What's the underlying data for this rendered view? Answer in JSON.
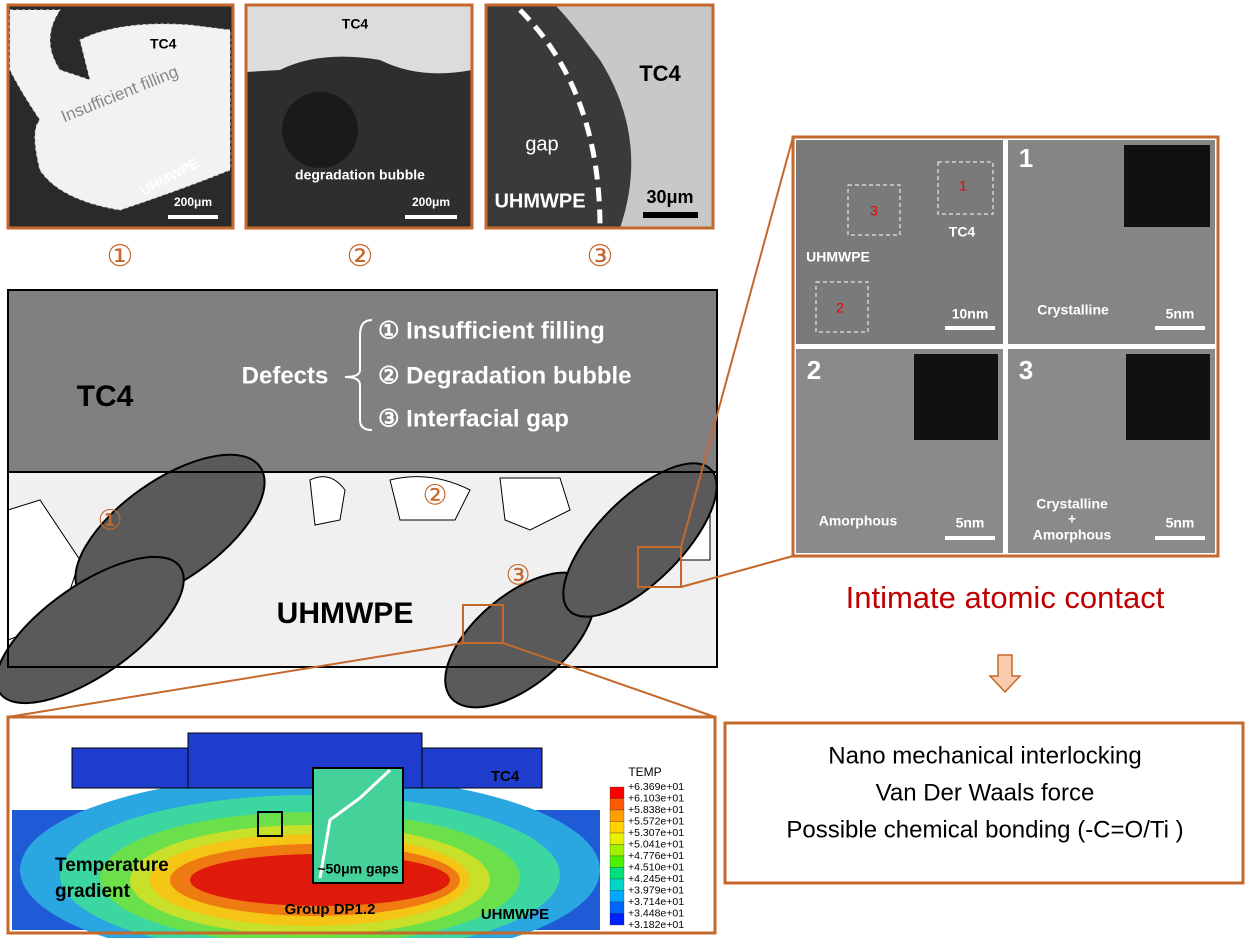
{
  "micrographs": [
    {
      "top": "TC4",
      "note": "Insufficient filling",
      "bottom": "UHMWPE",
      "scale": "200μm",
      "number": "①"
    },
    {
      "top": "TC4",
      "note": "degradation bubble",
      "scale": "200μm",
      "number": "②"
    },
    {
      "top": "TC4",
      "note": "gap",
      "bottom": "UHMWPE",
      "scale": "30μm",
      "number": "③"
    }
  ],
  "schematic": {
    "tc4": "TC4",
    "defects_label": "Defects",
    "defects": [
      "① Insufficient filling",
      "② Degradation bubble",
      "③ Interfacial gap"
    ],
    "uhmwpe": "UHMWPE",
    "markers": [
      "①",
      "②",
      "③"
    ]
  },
  "tem": {
    "overview": {
      "boxes": [
        "3",
        "1",
        "2"
      ],
      "tc4": "TC4",
      "uhmwpe": "UHMWPE",
      "scale": "10nm"
    },
    "panels": [
      {
        "number": "1",
        "label": "Crystalline",
        "scale": "5nm"
      },
      {
        "number": "2",
        "label": "Amorphous",
        "scale": "5nm"
      },
      {
        "number": "3",
        "label": [
          "Crystalline",
          "+",
          "Amorphous"
        ],
        "scale": "5nm"
      }
    ]
  },
  "contact": "Intimate atomic contact",
  "mechanisms": [
    "Nano mechanical interlocking",
    "Van Der Waals force",
    "Possible chemical bonding (-C=O/Ti )"
  ],
  "simulation": {
    "tc4": "TC4",
    "gradient": [
      "Temperature",
      "gradient"
    ],
    "gaps": "~50μm gaps",
    "group": "Group DP1.2",
    "uhmwpe": "UHMWPE",
    "legend_title": "TEMP",
    "legend_values": [
      "+6.369e+01",
      "+6.103e+01",
      "+5.838e+01",
      "+5.572e+01",
      "+5.307e+01",
      "+5.041e+01",
      "+4.776e+01",
      "+4.510e+01",
      "+4.245e+01",
      "+3.979e+01",
      "+3.714e+01",
      "+3.448e+01",
      "+3.182e+01"
    ]
  }
}
